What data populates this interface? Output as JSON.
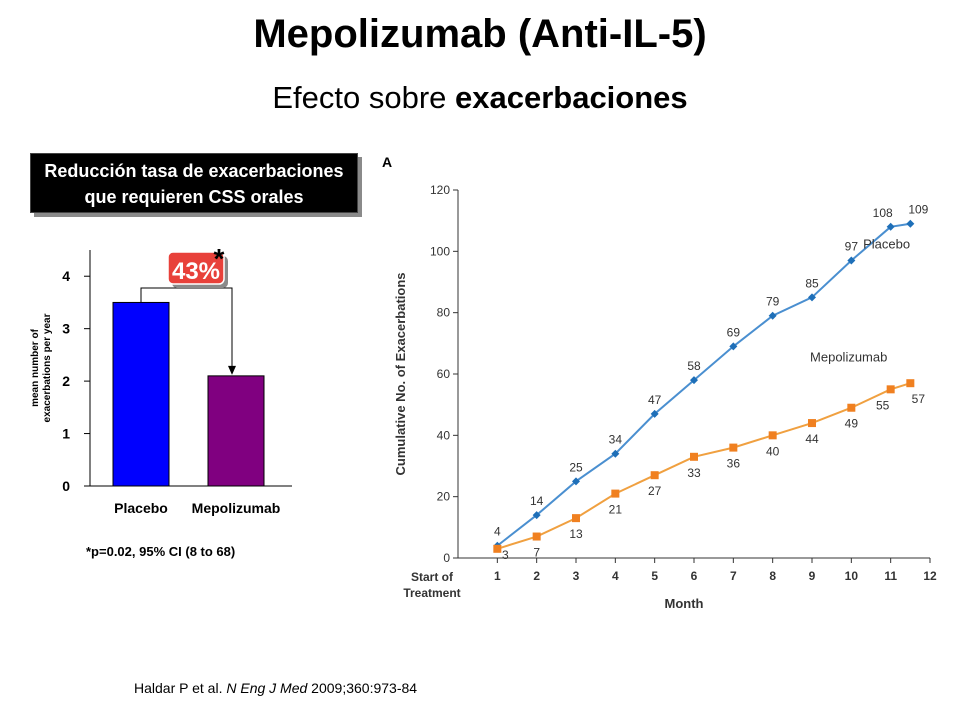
{
  "slide": {
    "title": "Mepolizumab (Anti-IL-5)",
    "subtitle_plain": "Efecto sobre ",
    "subtitle_bold": "exacerbaciones",
    "box_line1": "Reducción tasa de exacerbaciones",
    "box_line2": "que requieren CSS orales",
    "note": "*p=0.02, 95% CI (8 to 68)",
    "ref_authors": "Haldar P et al. ",
    "ref_journal": "N Eng J Med",
    "ref_rest": " 2009;360:973-84"
  },
  "chart_data": [
    {
      "type": "bar",
      "categories": [
        "Placebo",
        "Mepolizumab"
      ],
      "values": [
        3.5,
        2.1
      ],
      "bar_colors": [
        "#0000ff",
        "#800080"
      ],
      "ylabel": "mean number of exacerbations per year",
      "ylim": [
        0,
        4.5
      ],
      "yticks": [
        0,
        1,
        2,
        3,
        4
      ],
      "annotation": "43%",
      "annotation_mark": "*",
      "annotation_color": "#e8413a"
    },
    {
      "type": "line",
      "panel_label": "A",
      "xlabel": "Month",
      "ylabel": "Cumulative No. of Exacerbations",
      "x_start_label": [
        "Start of",
        "Treatment"
      ],
      "xticks": [
        1,
        2,
        3,
        4,
        5,
        6,
        7,
        8,
        9,
        10,
        11,
        12
      ],
      "yticks": [
        0,
        20,
        40,
        60,
        80,
        100,
        120
      ],
      "xlim": [
        0,
        12
      ],
      "ylim": [
        0,
        120
      ],
      "series": [
        {
          "name": "Placebo",
          "color": "#4a8fd0",
          "x": [
            1,
            2,
            3,
            4,
            5,
            6,
            7,
            8,
            9,
            10,
            11,
            11.5
          ],
          "values": [
            4,
            14,
            25,
            34,
            47,
            58,
            69,
            79,
            85,
            97,
            108,
            109
          ],
          "labels": [
            "4",
            "14",
            "25",
            "34",
            "47",
            "58",
            "69",
            "79",
            "85",
            "97",
            "108",
            "109"
          ]
        },
        {
          "name": "Mepolizumab",
          "color": "#f0a040",
          "x": [
            1,
            2,
            3,
            4,
            5,
            6,
            7,
            8,
            9,
            10,
            11,
            11.5
          ],
          "values": [
            3,
            7,
            13,
            21,
            27,
            33,
            36,
            40,
            44,
            49,
            55,
            57
          ],
          "labels": [
            "3",
            "7",
            "13",
            "21",
            "27",
            "33",
            "36",
            "40",
            "44",
            "49",
            "55",
            "57"
          ]
        }
      ]
    }
  ]
}
